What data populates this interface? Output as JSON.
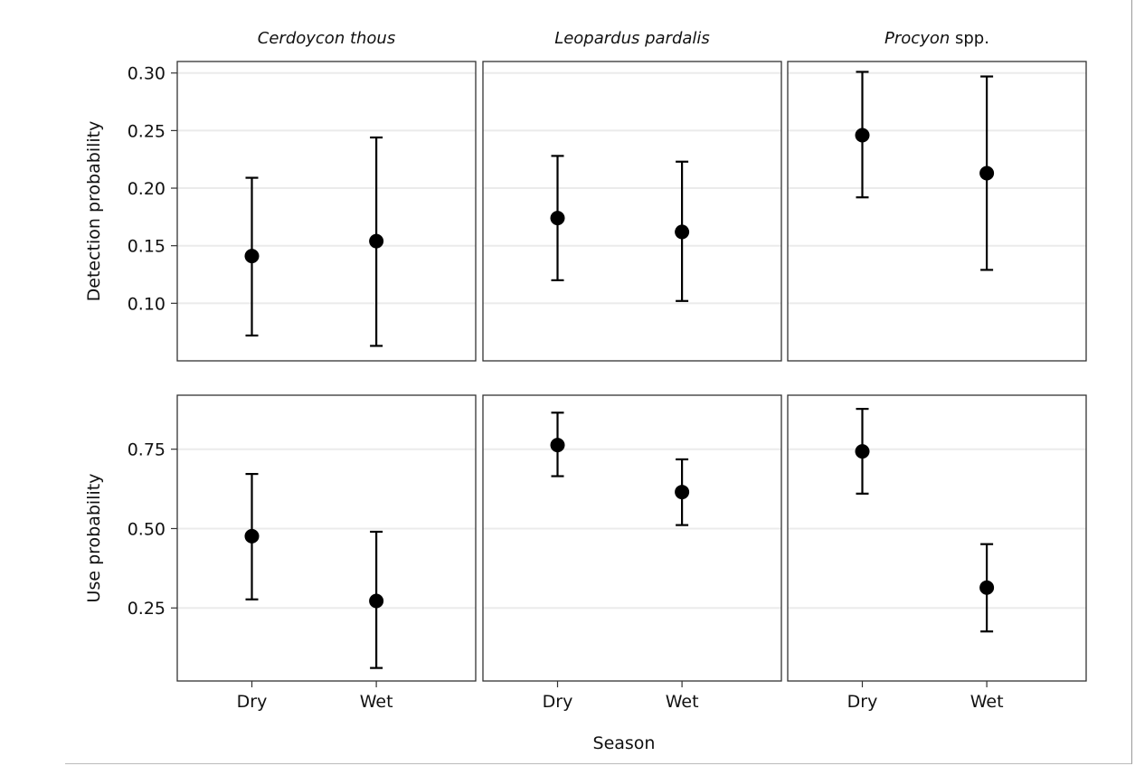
{
  "chart_data": {
    "type": "scatter",
    "subtype": "point-with-error-bars, faceted grid",
    "facet_columns": [
      {
        "label_italic": "Cerdoycon thous",
        "label_suffix": ""
      },
      {
        "label_italic": "Leopardus pardalis",
        "label_suffix": ""
      },
      {
        "label_italic": "Procyon",
        "label_suffix": " spp."
      }
    ],
    "xlabel": "Season",
    "categories": [
      "Dry",
      "Wet"
    ],
    "rows": [
      {
        "ylabel": "Detection probability",
        "ylim": [
          0.05,
          0.31
        ],
        "yticks": [
          0.1,
          0.15,
          0.2,
          0.25,
          0.3
        ],
        "ytick_labels": [
          "0.10",
          "0.15",
          "0.20",
          "0.25",
          "0.30"
        ],
        "panels": [
          {
            "points": [
              {
                "x": "Dry",
                "y": 0.141,
                "lower": 0.072,
                "upper": 0.209
              },
              {
                "x": "Wet",
                "y": 0.154,
                "lower": 0.063,
                "upper": 0.244
              }
            ]
          },
          {
            "points": [
              {
                "x": "Dry",
                "y": 0.174,
                "lower": 0.12,
                "upper": 0.228
              },
              {
                "x": "Wet",
                "y": 0.162,
                "lower": 0.102,
                "upper": 0.223
              }
            ]
          },
          {
            "points": [
              {
                "x": "Dry",
                "y": 0.246,
                "lower": 0.192,
                "upper": 0.301
              },
              {
                "x": "Wet",
                "y": 0.213,
                "lower": 0.129,
                "upper": 0.297
              }
            ]
          }
        ]
      },
      {
        "ylabel": "Use probability",
        "ylim": [
          0.02,
          0.92
        ],
        "yticks": [
          0.25,
          0.5,
          0.75
        ],
        "ytick_labels": [
          "0.25",
          "0.50",
          "0.75"
        ],
        "panels": [
          {
            "points": [
              {
                "x": "Dry",
                "y": 0.476,
                "lower": 0.277,
                "upper": 0.672
              },
              {
                "x": "Wet",
                "y": 0.272,
                "lower": 0.061,
                "upper": 0.49
              }
            ]
          },
          {
            "points": [
              {
                "x": "Dry",
                "y": 0.763,
                "lower": 0.665,
                "upper": 0.865
              },
              {
                "x": "Wet",
                "y": 0.615,
                "lower": 0.511,
                "upper": 0.718
              }
            ]
          },
          {
            "points": [
              {
                "x": "Dry",
                "y": 0.743,
                "lower": 0.61,
                "upper": 0.877
              },
              {
                "x": "Wet",
                "y": 0.314,
                "lower": 0.176,
                "upper": 0.451
              }
            ]
          }
        ]
      }
    ],
    "grid": true,
    "grid_color": "#ebebeb",
    "point_color": "#000000",
    "panel_border_color": "#333333"
  }
}
